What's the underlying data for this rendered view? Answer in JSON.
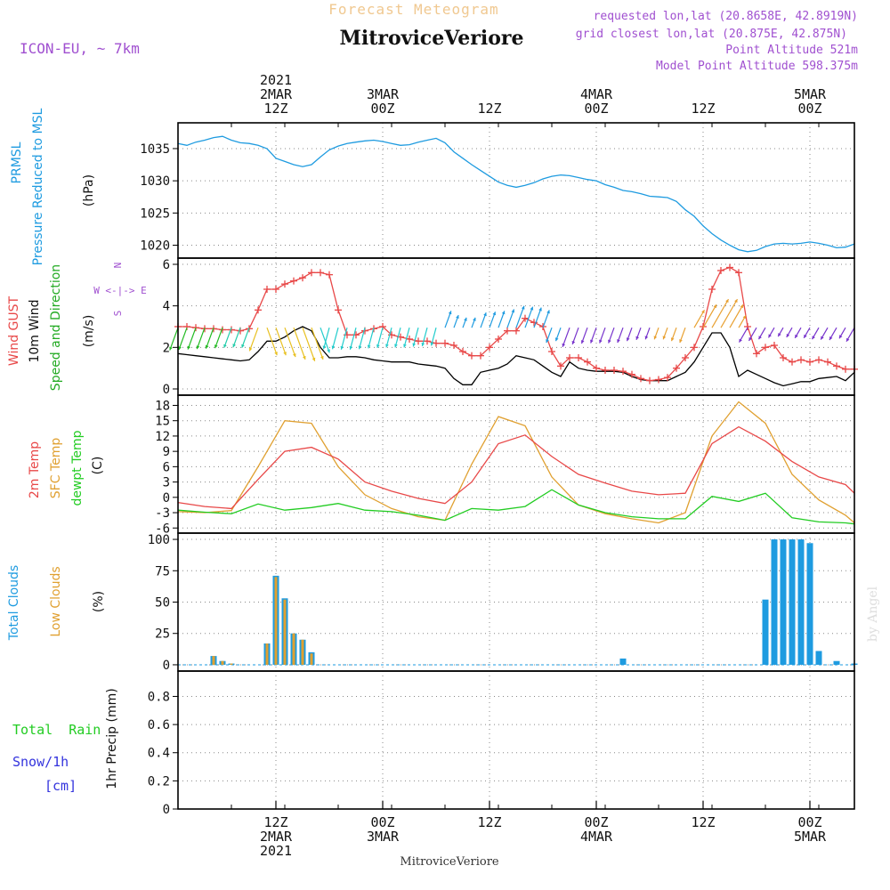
{
  "header": {
    "supertitle": "Forecast Meteogram",
    "title": "MitroviceVeriore",
    "model": "ICON-EU, ~ 7km",
    "requested": "requested lon,lat (20.8658E, 42.8919N)",
    "closest": "grid closest lon,lat (20.875E, 42.875N)",
    "point_altitude": "Point Altitude 521m",
    "model_altitude": "Model Point Altitude 598.375m",
    "signature": "by Angel",
    "bottom_title": "MitroviceVeriore"
  },
  "colors": {
    "pressure": "#1e9be0",
    "gust": "#e84848",
    "wind10": "#000000",
    "dir": "#22bb22",
    "temp": "#e84848",
    "sfc": "#e0a030",
    "dew": "#22cc22",
    "total_clouds": "#1e9be0",
    "low_clouds": "#e0a030",
    "rain": "#22cc22",
    "snow": "#3333dd",
    "purple": "#a050d0",
    "grid": "#888888"
  },
  "chart_data": [
    {
      "type": "line",
      "panel": "pressure",
      "ylabel_1": "PRMSL",
      "ylabel_2": "Pressure Reduced to MSL",
      "unit": "(hPa)",
      "ylim": [
        1018,
        1039
      ],
      "yticks": [
        1020,
        1025,
        1030,
        1035
      ],
      "x_hours": [
        0,
        1,
        2,
        3,
        4,
        5,
        6,
        7,
        8,
        9,
        10,
        11,
        12,
        13,
        14,
        15,
        16,
        17,
        18,
        19,
        20,
        21,
        22,
        23,
        24,
        25,
        26,
        27,
        28,
        29,
        30,
        31,
        32,
        33,
        34,
        35,
        36,
        37,
        38,
        39,
        40,
        41,
        42,
        43,
        44,
        45,
        46,
        47,
        48,
        49,
        50,
        51,
        52,
        53,
        54,
        55,
        56,
        57,
        58,
        59,
        60,
        61,
        62,
        63,
        64,
        65,
        66,
        67,
        68,
        69,
        70,
        71,
        72,
        73,
        74,
        75,
        76
      ],
      "values": [
        1035.8,
        1035.5,
        1036.0,
        1036.3,
        1036.7,
        1036.9,
        1036.3,
        1035.9,
        1035.8,
        1035.5,
        1035.0,
        1033.5,
        1033.0,
        1032.5,
        1032.2,
        1032.5,
        1033.7,
        1034.8,
        1035.4,
        1035.8,
        1036.0,
        1036.2,
        1036.3,
        1036.1,
        1035.8,
        1035.5,
        1035.6,
        1036.0,
        1036.3,
        1036.6,
        1035.9,
        1034.5,
        1033.5,
        1032.5,
        1031.6,
        1030.7,
        1029.8,
        1029.3,
        1029.0,
        1029.3,
        1029.7,
        1030.3,
        1030.7,
        1030.9,
        1030.8,
        1030.5,
        1030.2,
        1030.0,
        1029.4,
        1029.0,
        1028.5,
        1028.3,
        1028.0,
        1027.6,
        1027.5,
        1027.4,
        1026.8,
        1025.5,
        1024.5,
        1023.0,
        1021.8,
        1020.8,
        1020.0,
        1019.3,
        1019.0,
        1019.2,
        1019.8,
        1020.2,
        1020.3,
        1020.2,
        1020.3,
        1020.5,
        1020.3,
        1020.0,
        1019.6,
        1019.7,
        1020.2
      ]
    },
    {
      "type": "line",
      "panel": "wind",
      "ylabel_gust": "Wind GUST",
      "ylabel_10m": "10m Wind",
      "ylabel_dir": "Speed and Direction",
      "unit": "(m/s)",
      "compass": [
        "N",
        "W <-|-> E",
        "S"
      ],
      "ylim": [
        -0.3,
        6.3
      ],
      "yticks": [
        0,
        2,
        4,
        6
      ],
      "x_hours": [
        0,
        1,
        2,
        3,
        4,
        5,
        6,
        7,
        8,
        9,
        10,
        11,
        12,
        13,
        14,
        15,
        16,
        17,
        18,
        19,
        20,
        21,
        22,
        23,
        24,
        25,
        26,
        27,
        28,
        29,
        30,
        31,
        32,
        33,
        34,
        35,
        36,
        37,
        38,
        39,
        40,
        41,
        42,
        43,
        44,
        45,
        46,
        47,
        48,
        49,
        50,
        51,
        52,
        53,
        54,
        55,
        56,
        57,
        58,
        59,
        60,
        61,
        62,
        63,
        64,
        65,
        66,
        67,
        68,
        69,
        70,
        71,
        72,
        73,
        74,
        75,
        76
      ],
      "gust": [
        3.0,
        3.0,
        2.95,
        2.9,
        2.9,
        2.85,
        2.85,
        2.8,
        2.9,
        3.8,
        4.8,
        4.8,
        5.05,
        5.2,
        5.35,
        5.6,
        5.6,
        5.5,
        3.8,
        2.6,
        2.6,
        2.8,
        2.9,
        3.0,
        2.6,
        2.5,
        2.4,
        2.3,
        2.3,
        2.2,
        2.2,
        2.1,
        1.8,
        1.6,
        1.6,
        2.0,
        2.4,
        2.8,
        2.8,
        3.4,
        3.2,
        3.0,
        1.8,
        1.1,
        1.5,
        1.5,
        1.3,
        1.0,
        0.9,
        0.9,
        0.85,
        0.7,
        0.5,
        0.4,
        0.45,
        0.55,
        1.0,
        1.5,
        2.0,
        3.0,
        4.8,
        5.7,
        5.85,
        5.6,
        3.0,
        1.7,
        2.0,
        2.1,
        1.5,
        1.3,
        1.4,
        1.3,
        1.4,
        1.3,
        1.1,
        0.95,
        0.95
      ],
      "wind10": [
        1.7,
        1.65,
        1.6,
        1.55,
        1.5,
        1.45,
        1.4,
        1.35,
        1.4,
        1.8,
        2.3,
        2.3,
        2.5,
        2.8,
        3.0,
        2.8,
        2.0,
        1.5,
        1.5,
        1.55,
        1.55,
        1.5,
        1.4,
        1.35,
        1.3,
        1.3,
        1.3,
        1.2,
        1.15,
        1.1,
        1.0,
        0.5,
        0.2,
        0.2,
        0.8,
        0.9,
        1.0,
        1.2,
        1.6,
        1.5,
        1.4,
        1.1,
        0.8,
        0.6,
        1.3,
        1.0,
        0.9,
        0.85,
        0.85,
        0.85,
        0.8,
        0.6,
        0.45,
        0.4,
        0.4,
        0.4,
        0.6,
        0.8,
        1.3,
        2.0,
        2.7,
        2.7,
        2.0,
        0.6,
        0.9,
        0.7,
        0.5,
        0.3,
        0.15,
        0.25,
        0.35,
        0.35,
        0.5,
        0.55,
        0.6,
        0.4,
        0.8
      ],
      "arrows_note": "wind direction arrows drawn along y~2.5-3 m/s"
    },
    {
      "type": "line",
      "panel": "temperature",
      "ylabel_temp": "2m Temp",
      "ylabel_sfc": "SFC Temp",
      "ylabel_dew": "dewpt Temp",
      "unit": "(C)",
      "ylim": [
        -7,
        20
      ],
      "yticks": [
        -6,
        -3,
        0,
        3,
        6,
        9,
        12,
        15,
        18
      ],
      "x_hours": [
        0,
        3,
        6,
        9,
        12,
        15,
        18,
        21,
        24,
        27,
        30,
        33,
        36,
        39,
        42,
        45,
        48,
        51,
        54,
        57,
        60,
        63,
        66,
        69,
        72,
        75,
        76
      ],
      "temp2m": [
        -1.0,
        -1.8,
        -2.2,
        3.5,
        9.0,
        9.8,
        7.5,
        3.0,
        1.2,
        -0.2,
        -1.2,
        3.0,
        10.5,
        12.2,
        8.0,
        4.5,
        2.8,
        1.2,
        0.5,
        0.8,
        10.5,
        13.8,
        11.0,
        7.0,
        4.0,
        2.5,
        0.8
      ],
      "sfc": [
        -2.8,
        -3.0,
        -2.6,
        6.0,
        15.0,
        14.5,
        6.0,
        0.5,
        -2.2,
        -3.8,
        -4.5,
        6.5,
        15.8,
        14.0,
        4.0,
        -1.5,
        -3.2,
        -4.2,
        -5.0,
        -3.0,
        12.0,
        18.7,
        14.5,
        4.5,
        -0.5,
        -3.5,
        -5.0
      ],
      "dew": [
        -2.5,
        -2.9,
        -3.2,
        -1.3,
        -2.5,
        -2.0,
        -1.2,
        -2.5,
        -2.8,
        -3.5,
        -4.5,
        -2.2,
        -2.5,
        -1.8,
        1.5,
        -1.5,
        -3.0,
        -3.8,
        -4.2,
        -4.2,
        0.2,
        -0.8,
        0.8,
        -4.0,
        -4.8,
        -5.0,
        -5.2
      ]
    },
    {
      "type": "bar",
      "panel": "clouds",
      "ylabel_total": "Total Clouds",
      "ylabel_low": "Low Clouds",
      "unit": "(%)",
      "ylim": [
        -5,
        105
      ],
      "yticks": [
        0,
        25,
        50,
        75,
        100
      ],
      "x_hours": [
        0,
        1,
        2,
        3,
        4,
        5,
        6,
        7,
        8,
        9,
        10,
        11,
        12,
        13,
        14,
        15,
        16,
        17,
        18,
        19,
        20,
        21,
        22,
        23,
        24,
        25,
        26,
        27,
        28,
        29,
        30,
        31,
        32,
        33,
        34,
        35,
        36,
        37,
        38,
        39,
        40,
        41,
        42,
        43,
        44,
        45,
        46,
        47,
        48,
        49,
        50,
        51,
        52,
        53,
        54,
        55,
        56,
        57,
        58,
        59,
        60,
        61,
        62,
        63,
        64,
        65,
        66,
        67,
        68,
        69,
        70,
        71,
        72,
        73,
        74,
        75,
        76
      ],
      "total": [
        0,
        0,
        0,
        0,
        7,
        3,
        1,
        0,
        0,
        0,
        17,
        71,
        53,
        25,
        20,
        10,
        0,
        0,
        0,
        0,
        0,
        0,
        0,
        0,
        0,
        0,
        0,
        0,
        0,
        0,
        0,
        0,
        0,
        0,
        0,
        0,
        0,
        0,
        0,
        0,
        0,
        0,
        0,
        0,
        0,
        0,
        0,
        0,
        0,
        0,
        5,
        0,
        0,
        0,
        0,
        0,
        0,
        0,
        0,
        0,
        0,
        0,
        0,
        0,
        0,
        0,
        52,
        100,
        100,
        100,
        100,
        97,
        11,
        0,
        3,
        0,
        1
      ],
      "low": [
        0,
        0,
        0,
        0,
        7,
        3,
        1,
        0,
        0,
        0,
        17,
        70,
        52,
        25,
        20,
        9,
        0,
        0,
        0,
        0,
        0,
        0,
        0,
        0,
        0,
        0,
        0,
        0,
        0,
        0,
        0,
        0,
        0,
        0,
        0,
        0,
        0,
        0,
        0,
        0,
        0,
        0,
        0,
        0,
        0,
        0,
        0,
        0,
        0,
        0,
        0,
        0,
        0,
        0,
        0,
        0,
        0,
        0,
        0,
        0,
        0,
        0,
        0,
        0,
        0,
        0,
        0,
        0,
        0,
        0,
        0,
        0,
        0,
        0,
        0,
        0,
        0
      ]
    },
    {
      "type": "bar",
      "panel": "precip",
      "ylabel_1": "1hr Precip (mm)",
      "rain_label": "Total  Rain",
      "snow_label": "Snow/1h",
      "snow_unit": "[cm]",
      "ylim": [
        0,
        0.98
      ],
      "yticks": [
        "0",
        "0.2",
        "0.4",
        "0.6",
        "0.8"
      ],
      "ytick_values": [
        0,
        0.2,
        0.4,
        0.6,
        0.8
      ],
      "rain": [],
      "snow": []
    }
  ],
  "time_axis": {
    "x_start_hour": 0,
    "x_end_hour": 76,
    "top_labels": [
      {
        "hour": 11,
        "lines": [
          "2021",
          "2MAR",
          "12Z"
        ]
      },
      {
        "hour": 23,
        "lines": [
          "3MAR",
          "00Z"
        ]
      },
      {
        "hour": 35,
        "lines": [
          "12Z"
        ]
      },
      {
        "hour": 47,
        "lines": [
          "4MAR",
          "00Z"
        ]
      },
      {
        "hour": 59,
        "lines": [
          "12Z"
        ]
      },
      {
        "hour": 71,
        "lines": [
          "5MAR",
          "00Z"
        ]
      }
    ],
    "bottom_labels": [
      {
        "hour": 11,
        "lines": [
          "12Z",
          "2MAR",
          "2021"
        ]
      },
      {
        "hour": 23,
        "lines": [
          "00Z",
          "3MAR"
        ]
      },
      {
        "hour": 35,
        "lines": [
          "12Z"
        ]
      },
      {
        "hour": 47,
        "lines": [
          "00Z",
          "4MAR"
        ]
      },
      {
        "hour": 59,
        "lines": [
          "12Z"
        ]
      },
      {
        "hour": 71,
        "lines": [
          "00Z",
          "5MAR"
        ]
      }
    ]
  }
}
